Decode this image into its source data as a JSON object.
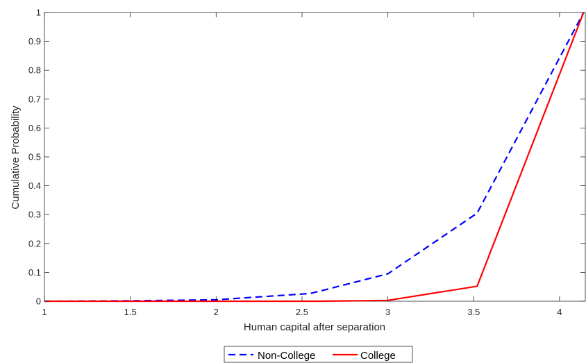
{
  "chart_data": {
    "type": "line",
    "xlabel": "Human capital after separation",
    "ylabel": "Cumulative Probability",
    "xlim": [
      1,
      4.15
    ],
    "ylim": [
      0,
      1
    ],
    "x_ticks": [
      "1",
      "1.5",
      "2",
      "2.5",
      "3",
      "3.5",
      "4"
    ],
    "y_ticks": [
      "0",
      "0.1",
      "0.2",
      "0.3",
      "0.4",
      "0.5",
      "0.6",
      "0.7",
      "0.8",
      "0.9",
      "1"
    ],
    "grid": false,
    "legend_position": "bottom-outside",
    "series": [
      {
        "name": "Non-College",
        "color": "#0000ff",
        "style": "dashed",
        "points": [
          [
            1.0,
            0.0
          ],
          [
            1.5,
            0.0015
          ],
          [
            2.0,
            0.005
          ],
          [
            2.55,
            0.027
          ],
          [
            3.0,
            0.095
          ],
          [
            3.52,
            0.305
          ],
          [
            4.14,
            1.0
          ]
        ]
      },
      {
        "name": "College",
        "color": "#ff0000",
        "style": "solid",
        "points": [
          [
            1.0,
            0.0
          ],
          [
            2.0,
            0.0
          ],
          [
            2.6,
            0.0
          ],
          [
            3.0,
            0.003
          ],
          [
            3.52,
            0.052
          ],
          [
            4.14,
            1.0
          ]
        ]
      }
    ]
  }
}
